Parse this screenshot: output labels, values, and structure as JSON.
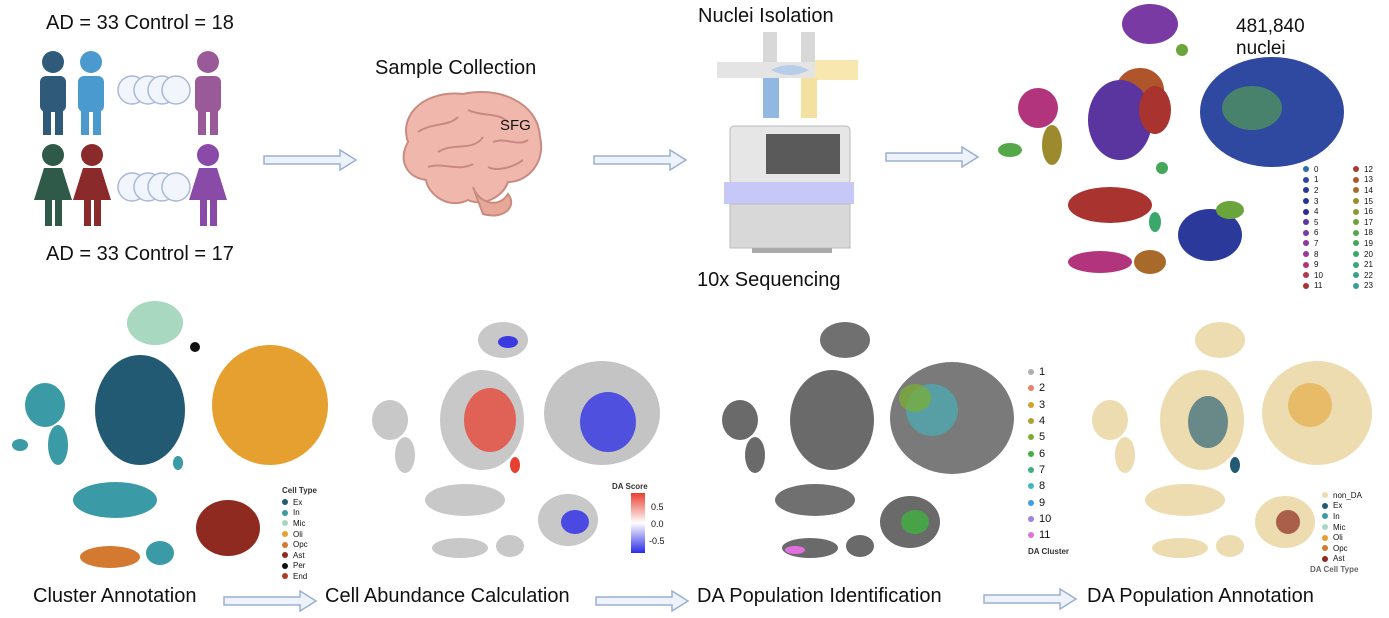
{
  "cohort": {
    "top": "AD = 33  Control = 18",
    "bottom": "AD = 33  Control = 17"
  },
  "steps": {
    "sample_collection": "Sample Collection",
    "brain_region": "SFG",
    "nuclei_isolation": "Nuclei Isolation",
    "sequencing": "10x Sequencing",
    "nuclei_count": "481,840",
    "nuclei_label": "nuclei"
  },
  "umap_clusters": {
    "labels": [
      "0",
      "1",
      "2",
      "3",
      "4",
      "5",
      "6",
      "7",
      "8",
      "9",
      "10",
      "11",
      "12",
      "13",
      "14",
      "15",
      "16",
      "17",
      "18",
      "19",
      "20",
      "21",
      "22",
      "23"
    ],
    "colors": [
      "#2e6fa8",
      "#2b4a9a",
      "#283b92",
      "#26358f",
      "#2f2c8c",
      "#5a35a0",
      "#7a3aa3",
      "#8a3a9c",
      "#9a3a96",
      "#b2347c",
      "#b23a4c",
      "#a8332f",
      "#a83a2e",
      "#b0542c",
      "#a86a2a",
      "#9c8a2c",
      "#8a9a30",
      "#6aa43a",
      "#54a84a",
      "#44a858",
      "#3aa86a",
      "#3aa47a",
      "#3aa08a",
      "#3a9c9a"
    ]
  },
  "panels": {
    "cluster_annotation": {
      "title": "Cluster Annotation",
      "legend_title": "Cell Type",
      "items": [
        {
          "label": "Ex",
          "color": "#235a73"
        },
        {
          "label": "In",
          "color": "#3a9aa6"
        },
        {
          "label": "Mic",
          "color": "#a8d8c0"
        },
        {
          "label": "Oli",
          "color": "#e6a030"
        },
        {
          "label": "Opc",
          "color": "#d47a30"
        },
        {
          "label": "Ast",
          "color": "#8e2a20"
        },
        {
          "label": "Per",
          "color": "#111111"
        },
        {
          "label": "End",
          "color": "#b03a28"
        }
      ]
    },
    "cell_abundance": {
      "title": "Cell Abundance Calculation",
      "legend_title": "DA Score",
      "ticks": [
        "0.5",
        "0.0",
        "-0.5"
      ]
    },
    "da_population": {
      "title": "DA Population Identification",
      "legend_title": "DA Cluster",
      "items": [
        {
          "label": "1",
          "color": "#b0b0b0"
        },
        {
          "label": "2",
          "color": "#e8806a"
        },
        {
          "label": "3",
          "color": "#d4a030"
        },
        {
          "label": "4",
          "color": "#b0a030"
        },
        {
          "label": "5",
          "color": "#7ab030"
        },
        {
          "label": "6",
          "color": "#40b040"
        },
        {
          "label": "7",
          "color": "#40b080"
        },
        {
          "label": "8",
          "color": "#40b8c0"
        },
        {
          "label": "9",
          "color": "#40a0e0"
        },
        {
          "label": "10",
          "color": "#a080e0"
        },
        {
          "label": "11",
          "color": "#e070e0"
        }
      ]
    },
    "da_annotation": {
      "title": "DA Population Annotation",
      "legend_title": "DA Cell Type",
      "items": [
        {
          "label": "non_DA",
          "color": "#ecdcb0"
        },
        {
          "label": "Ex",
          "color": "#235a73"
        },
        {
          "label": "In",
          "color": "#3a9aa6"
        },
        {
          "label": "Mic",
          "color": "#a8d8c0"
        },
        {
          "label": "Oli",
          "color": "#e6a030"
        },
        {
          "label": "Opc",
          "color": "#d47a30"
        },
        {
          "label": "Ast",
          "color": "#8e2a20"
        }
      ]
    }
  }
}
